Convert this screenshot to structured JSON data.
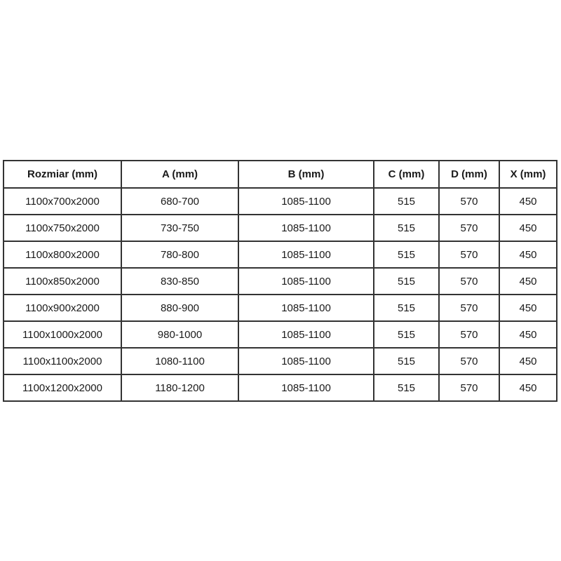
{
  "table": {
    "columns": [
      {
        "key": "rozmiar",
        "label": "Rozmiar (mm)"
      },
      {
        "key": "a",
        "label": "A (mm)"
      },
      {
        "key": "b",
        "label": "B (mm)"
      },
      {
        "key": "c",
        "label": "C (mm)"
      },
      {
        "key": "d",
        "label": "D (mm)"
      },
      {
        "key": "x",
        "label": "X (mm)"
      }
    ],
    "rows": [
      [
        "1100x700x2000",
        "680-700",
        "1085-1100",
        "515",
        "570",
        "450"
      ],
      [
        "1100x750x2000",
        "730-750",
        "1085-1100",
        "515",
        "570",
        "450"
      ],
      [
        "1100x800x2000",
        "780-800",
        "1085-1100",
        "515",
        "570",
        "450"
      ],
      [
        "1100x850x2000",
        "830-850",
        "1085-1100",
        "515",
        "570",
        "450"
      ],
      [
        "1100x900x2000",
        "880-900",
        "1085-1100",
        "515",
        "570",
        "450"
      ],
      [
        "1100x1000x2000",
        "980-1000",
        "1085-1100",
        "515",
        "570",
        "450"
      ],
      [
        "1100x1100x2000",
        "1080-1100",
        "1085-1100",
        "515",
        "570",
        "450"
      ],
      [
        "1100x1200x2000",
        "1180-1200",
        "1085-1100",
        "515",
        "570",
        "450"
      ]
    ],
    "colors": {
      "border": "#333333",
      "text": "#1a1a1a",
      "background": "#ffffff"
    }
  }
}
